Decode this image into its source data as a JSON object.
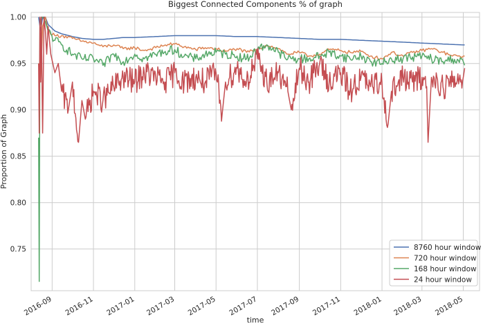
{
  "chart_data": {
    "type": "line",
    "title": "Biggest Connected Components % of graph",
    "xlabel": "time",
    "ylabel": "Proportion of Graph",
    "ylim": [
      0.705,
      1.005
    ],
    "y_ticks": [
      0.75,
      0.8,
      0.85,
      0.9,
      0.95,
      1.0
    ],
    "y_tick_labels": [
      "0.75",
      "0.80",
      "0.85",
      "0.90",
      "0.95",
      "1.00"
    ],
    "x_range": [
      "2016-08-01",
      "2018-05-25"
    ],
    "x_ticks": [
      "2016-09-01",
      "2016-11-01",
      "2017-01-01",
      "2017-03-01",
      "2017-05-01",
      "2017-07-01",
      "2017-09-01",
      "2017-11-01",
      "2018-01-01",
      "2018-03-01",
      "2018-05-01"
    ],
    "x_tick_labels": [
      "2016-09",
      "2016-11",
      "2017-01",
      "2017-03",
      "2017-05",
      "2017-07",
      "2017-09",
      "2017-11",
      "2018-01",
      "2018-03",
      "2018-05"
    ],
    "grid": true,
    "legend_position": "lower-right",
    "series": [
      {
        "name": "8760 hour window",
        "color": "#4c72b0",
        "x": [
          "2016-08-12",
          "2016-08-15",
          "2016-08-18",
          "2016-08-22",
          "2016-08-26",
          "2016-09-05",
          "2016-09-15",
          "2016-10-01",
          "2016-10-15",
          "2016-11-01",
          "2016-11-15",
          "2016-12-01",
          "2016-12-15",
          "2017-01-01",
          "2017-02-01",
          "2017-03-01",
          "2017-04-01",
          "2017-05-01",
          "2017-06-01",
          "2017-07-01",
          "2017-08-01",
          "2017-09-01",
          "2017-10-01",
          "2017-11-01",
          "2017-12-01",
          "2018-01-01",
          "2018-02-01",
          "2018-03-01",
          "2018-04-01",
          "2018-05-01",
          "2018-05-03"
        ],
        "values": [
          1.0,
          0.985,
          1.0,
          1.0,
          0.992,
          0.985,
          0.982,
          0.979,
          0.977,
          0.976,
          0.976,
          0.977,
          0.978,
          0.978,
          0.979,
          0.98,
          0.98,
          0.98,
          0.979,
          0.979,
          0.978,
          0.977,
          0.976,
          0.976,
          0.975,
          0.974,
          0.973,
          0.972,
          0.971,
          0.97,
          0.97
        ]
      },
      {
        "name": "720 hour window",
        "color": "#dd8452",
        "x": [
          "2016-08-12",
          "2016-08-15",
          "2016-08-18",
          "2016-08-22",
          "2016-08-26",
          "2016-09-05",
          "2016-09-15",
          "2016-10-01",
          "2016-10-15",
          "2016-11-01",
          "2016-11-15",
          "2016-12-01",
          "2016-12-15",
          "2017-01-01",
          "2017-01-15",
          "2017-02-01",
          "2017-02-15",
          "2017-03-01",
          "2017-03-15",
          "2017-04-01",
          "2017-04-15",
          "2017-05-01",
          "2017-05-15",
          "2017-06-01",
          "2017-06-15",
          "2017-07-01",
          "2017-07-15",
          "2017-08-01",
          "2017-08-15",
          "2017-09-01",
          "2017-09-15",
          "2017-10-01",
          "2017-10-15",
          "2017-11-01",
          "2017-11-15",
          "2017-12-01",
          "2017-12-15",
          "2018-01-01",
          "2018-01-15",
          "2018-02-01",
          "2018-02-15",
          "2018-03-01",
          "2018-03-15",
          "2018-04-01",
          "2018-04-15",
          "2018-05-01",
          "2018-05-03"
        ],
        "values": [
          0.95,
          0.93,
          0.99,
          1.0,
          0.985,
          0.98,
          0.98,
          0.977,
          0.974,
          0.972,
          0.968,
          0.97,
          0.966,
          0.967,
          0.964,
          0.967,
          0.97,
          0.971,
          0.968,
          0.965,
          0.967,
          0.966,
          0.963,
          0.966,
          0.962,
          0.965,
          0.97,
          0.966,
          0.96,
          0.962,
          0.958,
          0.96,
          0.965,
          0.964,
          0.962,
          0.963,
          0.958,
          0.955,
          0.962,
          0.958,
          0.962,
          0.964,
          0.966,
          0.962,
          0.958,
          0.958,
          0.958
        ]
      },
      {
        "name": "168 hour window",
        "color": "#55a868",
        "x": [
          "2016-08-12",
          "2016-08-13",
          "2016-08-14",
          "2016-08-16",
          "2016-08-18",
          "2016-08-22",
          "2016-08-26",
          "2016-09-05",
          "2016-09-15",
          "2016-10-01",
          "2016-10-15",
          "2016-11-01",
          "2016-11-15",
          "2016-12-01",
          "2016-12-15",
          "2017-01-01",
          "2017-01-15",
          "2017-02-01",
          "2017-02-15",
          "2017-03-01",
          "2017-03-15",
          "2017-04-01",
          "2017-04-15",
          "2017-05-01",
          "2017-05-15",
          "2017-06-01",
          "2017-06-15",
          "2017-07-01",
          "2017-07-15",
          "2017-08-01",
          "2017-08-15",
          "2017-09-01",
          "2017-09-15",
          "2017-10-01",
          "2017-10-15",
          "2017-11-01",
          "2017-11-15",
          "2017-12-01",
          "2017-12-15",
          "2018-01-01",
          "2018-01-15",
          "2018-02-01",
          "2018-02-15",
          "2018-03-01",
          "2018-03-15",
          "2018-04-01",
          "2018-04-15",
          "2018-05-01",
          "2018-05-03"
        ],
        "values": [
          0.87,
          0.715,
          0.99,
          1.0,
          1.0,
          0.995,
          0.985,
          0.975,
          0.97,
          0.96,
          0.955,
          0.955,
          0.948,
          0.96,
          0.952,
          0.96,
          0.955,
          0.96,
          0.963,
          0.965,
          0.958,
          0.955,
          0.96,
          0.962,
          0.96,
          0.958,
          0.955,
          0.965,
          0.97,
          0.962,
          0.955,
          0.955,
          0.955,
          0.958,
          0.962,
          0.958,
          0.955,
          0.958,
          0.952,
          0.95,
          0.955,
          0.955,
          0.957,
          0.958,
          0.955,
          0.952,
          0.955,
          0.952,
          0.948
        ]
      },
      {
        "name": "24 hour window",
        "color": "#c44e52",
        "x": [
          "2016-08-12",
          "2016-08-13",
          "2016-08-14",
          "2016-08-15",
          "2016-08-16",
          "2016-08-18",
          "2016-08-20",
          "2016-08-22",
          "2016-08-24",
          "2016-08-26",
          "2016-08-30",
          "2016-09-05",
          "2016-09-10",
          "2016-09-15",
          "2016-09-25",
          "2016-10-01",
          "2016-10-10",
          "2016-10-15",
          "2016-10-20",
          "2016-11-01",
          "2016-11-15",
          "2016-12-01",
          "2016-12-15",
          "2017-01-01",
          "2017-01-15",
          "2017-02-01",
          "2017-02-15",
          "2017-03-01",
          "2017-03-15",
          "2017-04-01",
          "2017-04-15",
          "2017-05-01",
          "2017-05-10",
          "2017-05-15",
          "2017-06-01",
          "2017-06-15",
          "2017-07-01",
          "2017-07-15",
          "2017-08-01",
          "2017-08-15",
          "2017-08-20",
          "2017-09-01",
          "2017-09-15",
          "2017-10-01",
          "2017-10-15",
          "2017-11-01",
          "2017-11-15",
          "2017-12-01",
          "2017-12-15",
          "2018-01-01",
          "2018-01-10",
          "2018-01-15",
          "2018-02-01",
          "2018-02-15",
          "2018-03-01",
          "2018-03-08",
          "2018-03-10",
          "2018-03-15",
          "2018-04-01",
          "2018-04-15",
          "2018-05-01",
          "2018-05-03"
        ],
        "values": [
          0.95,
          0.875,
          1.0,
          0.93,
          1.0,
          0.875,
          1.0,
          0.985,
          0.96,
          0.99,
          0.96,
          0.94,
          0.95,
          0.92,
          0.9,
          0.93,
          0.865,
          0.91,
          0.89,
          0.92,
          0.91,
          0.925,
          0.935,
          0.93,
          0.94,
          0.935,
          0.93,
          0.94,
          0.93,
          0.935,
          0.93,
          0.94,
          0.895,
          0.93,
          0.945,
          0.93,
          0.955,
          0.93,
          0.94,
          0.92,
          0.9,
          0.945,
          0.93,
          0.95,
          0.93,
          0.94,
          0.92,
          0.935,
          0.925,
          0.93,
          0.885,
          0.92,
          0.935,
          0.93,
          0.935,
          0.925,
          0.865,
          0.935,
          0.925,
          0.93,
          0.935,
          0.945
        ]
      }
    ]
  }
}
